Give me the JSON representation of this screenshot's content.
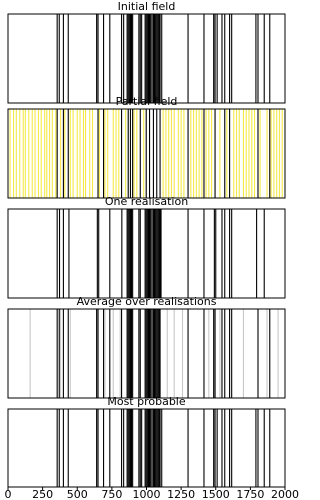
{
  "chart_data": [
    {
      "type": "barcode",
      "title": "Initial field",
      "xlim": [
        0,
        2000
      ],
      "series": [
        {
          "color": "#000000",
          "x": [
            355,
            370,
            400,
            435,
            640,
            650,
            690,
            735,
            820,
            835,
            860,
            868,
            876,
            884,
            892,
            900,
            945,
            955,
            965,
            990,
            998,
            1006,
            1014,
            1022,
            1030,
            1040,
            1050,
            1058,
            1066,
            1074,
            1082,
            1090,
            1098,
            1110,
            1300,
            1415,
            1485,
            1495,
            1510,
            1545,
            1565,
            1600,
            1615,
            1790,
            1805,
            1850,
            1890
          ]
        }
      ]
    },
    {
      "type": "barcode",
      "title": "Partial field",
      "xlim": [
        0,
        2000
      ],
      "series": [
        {
          "color": "#f5e94a",
          "x": [
            15,
            40,
            60,
            85,
            110,
            125,
            150,
            175,
            195,
            220,
            240,
            265,
            280,
            300,
            320,
            345,
            380,
            410,
            450,
            470,
            500,
            520,
            545,
            560,
            590,
            610,
            660,
            700,
            720,
            760,
            780,
            800,
            850,
            910,
            930,
            980,
            1120,
            1140,
            1160,
            1180,
            1200,
            1230,
            1250,
            1270,
            1320,
            1340,
            1360,
            1380,
            1400,
            1430,
            1450,
            1470,
            1530,
            1580,
            1630,
            1650,
            1670,
            1700,
            1720,
            1740,
            1760,
            1780,
            1820,
            1870,
            1900,
            1920,
            1940,
            1960,
            1980
          ]
        },
        {
          "color": "#000000",
          "x": [
            355,
            400,
            435,
            650,
            690,
            820,
            868,
            884,
            900,
            955,
            998,
            1022,
            1050,
            1074,
            1098,
            1300,
            1415,
            1495,
            1565,
            1600,
            1805,
            1890
          ]
        }
      ]
    },
    {
      "type": "barcode",
      "title": "One realisation",
      "xlim": [
        0,
        2000
      ],
      "series": [
        {
          "color": "#000000",
          "x": [
            355,
            372,
            400,
            440,
            645,
            655,
            735,
            822,
            860,
            868,
            876,
            884,
            892,
            900,
            945,
            955,
            990,
            998,
            1006,
            1014,
            1022,
            1030,
            1040,
            1050,
            1058,
            1066,
            1074,
            1082,
            1090,
            1098,
            1105,
            1300,
            1415,
            1490,
            1500,
            1545,
            1565,
            1600,
            1615,
            1795,
            1850
          ]
        }
      ]
    },
    {
      "type": "barcode",
      "title": "Average over realisations",
      "xlim": [
        0,
        2000
      ],
      "series": [
        {
          "color": "#c8c8c8",
          "x": [
            160,
            380,
            450,
            700,
            760,
            810,
            1150,
            1200,
            1260,
            1450,
            1530,
            1700,
            1870,
            1950
          ]
        },
        {
          "color": "#000000",
          "x": [
            355,
            370,
            400,
            435,
            640,
            650,
            690,
            735,
            820,
            860,
            868,
            876,
            884,
            892,
            900,
            945,
            955,
            990,
            998,
            1006,
            1014,
            1022,
            1030,
            1040,
            1050,
            1058,
            1066,
            1074,
            1082,
            1090,
            1098,
            1300,
            1415,
            1485,
            1495,
            1545,
            1565,
            1600,
            1615,
            1805,
            1890
          ]
        }
      ]
    },
    {
      "type": "barcode",
      "title": "Most probable",
      "xlim": [
        0,
        2000
      ],
      "xticks": [
        0,
        250,
        500,
        750,
        1000,
        1250,
        1500,
        1750,
        2000
      ],
      "series": [
        {
          "color": "#000000",
          "x": [
            355,
            370,
            400,
            435,
            640,
            650,
            690,
            735,
            820,
            835,
            860,
            868,
            876,
            884,
            892,
            900,
            945,
            955,
            965,
            990,
            998,
            1006,
            1014,
            1022,
            1030,
            1040,
            1050,
            1058,
            1066,
            1074,
            1082,
            1090,
            1098,
            1110,
            1300,
            1415,
            1485,
            1495,
            1510,
            1545,
            1565,
            1600,
            1615,
            1790,
            1805,
            1850,
            1890
          ]
        }
      ]
    }
  ]
}
